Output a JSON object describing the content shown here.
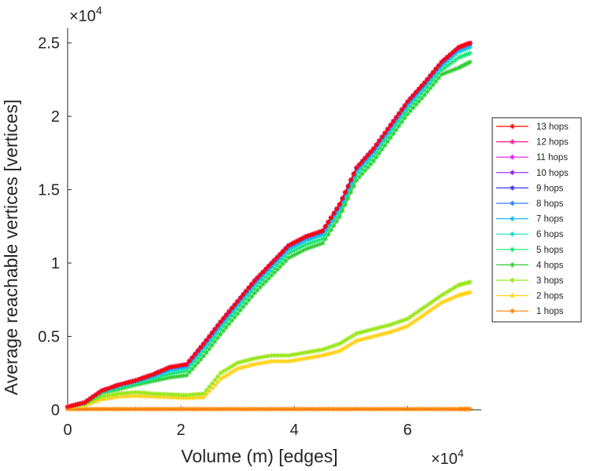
{
  "chart_data": {
    "type": "line",
    "title": "",
    "xlabel": "Volume (m) [edges]",
    "ylabel": "Average reachable vertices [vertices]",
    "x_multiplier": "×10⁴",
    "y_multiplier": "×10⁴",
    "x_multiplier_base": "×10",
    "x_multiplier_exp": "4",
    "y_multiplier_base": "×10",
    "y_multiplier_exp": "4",
    "xlim": [
      0,
      73000
    ],
    "ylim": [
      0,
      26000
    ],
    "xticks": [
      0,
      20000,
      40000,
      60000
    ],
    "xtick_labels": [
      "0",
      "2",
      "4",
      "6"
    ],
    "yticks": [
      0,
      5000,
      10000,
      15000,
      20000,
      25000
    ],
    "ytick_labels": [
      "0",
      "0.5",
      "1",
      "1.5",
      "2",
      "2.5"
    ],
    "grid": false,
    "legend_position": "right",
    "marker": "*",
    "x": [
      0,
      3000,
      6000,
      9000,
      12000,
      15000,
      18000,
      21000,
      24000,
      27000,
      30000,
      33000,
      36000,
      39000,
      42000,
      45000,
      48000,
      51000,
      54000,
      57000,
      60000,
      63000,
      66000,
      69000,
      71000
    ],
    "series": [
      {
        "name": "13 hops",
        "color": "#ff0000",
        "values": [
          200,
          500,
          1300,
          1700,
          2000,
          2400,
          2900,
          3100,
          4500,
          6000,
          7400,
          8800,
          10000,
          11200,
          11800,
          12200,
          14000,
          16500,
          17800,
          19400,
          21000,
          22300,
          23700,
          24700,
          25000
        ]
      },
      {
        "name": "12 hops",
        "color": "#ff1a8c",
        "values": [
          200,
          500,
          1300,
          1700,
          2000,
          2400,
          2900,
          3100,
          4500,
          6000,
          7400,
          8800,
          10000,
          11200,
          11800,
          12200,
          14000,
          16500,
          17800,
          19400,
          21000,
          22300,
          23700,
          24700,
          25000
        ]
      },
      {
        "name": "11 hops",
        "color": "#e61ae6",
        "values": [
          200,
          500,
          1300,
          1700,
          2000,
          2400,
          2900,
          3100,
          4500,
          6000,
          7400,
          8800,
          10000,
          11200,
          11800,
          12200,
          14000,
          16500,
          17800,
          19400,
          21000,
          22300,
          23700,
          24700,
          25000
        ]
      },
      {
        "name": "10 hops",
        "color": "#8c1ae6",
        "values": [
          200,
          500,
          1300,
          1700,
          2000,
          2400,
          2900,
          3100,
          4500,
          6000,
          7400,
          8800,
          10000,
          11200,
          11800,
          12200,
          14000,
          16500,
          17800,
          19400,
          21000,
          22300,
          23700,
          24700,
          25000
        ]
      },
      {
        "name": "9 hops",
        "color": "#3333ee",
        "values": [
          200,
          500,
          1300,
          1700,
          2000,
          2400,
          2900,
          3100,
          4500,
          6000,
          7400,
          8800,
          10000,
          11200,
          11800,
          12200,
          14000,
          16500,
          17800,
          19400,
          21000,
          22300,
          23700,
          24700,
          25000
        ]
      },
      {
        "name": "8 hops",
        "color": "#2a7fff",
        "values": [
          200,
          500,
          1300,
          1700,
          2000,
          2350,
          2850,
          3050,
          4450,
          5950,
          7350,
          8750,
          9950,
          11150,
          11750,
          12150,
          13950,
          16450,
          17750,
          19350,
          20950,
          22250,
          23650,
          24650,
          24950
        ]
      },
      {
        "name": "7 hops",
        "color": "#1ab8f0",
        "values": [
          200,
          500,
          1300,
          1650,
          1950,
          2300,
          2750,
          2950,
          4300,
          5800,
          7200,
          8600,
          9800,
          11000,
          11600,
          12000,
          13800,
          16300,
          17600,
          19200,
          20800,
          22100,
          23500,
          24500,
          24800
        ]
      },
      {
        "name": "6 hops",
        "color": "#1adbc8",
        "values": [
          200,
          500,
          1250,
          1600,
          1900,
          2200,
          2650,
          2850,
          4200,
          5700,
          7100,
          8500,
          9700,
          10900,
          11500,
          11900,
          13700,
          16200,
          17500,
          19100,
          20700,
          22000,
          23400,
          24400,
          24700
        ]
      },
      {
        "name": "5 hops",
        "color": "#1ae673",
        "values": [
          200,
          500,
          1200,
          1500,
          1800,
          2100,
          2450,
          2650,
          3950,
          5450,
          6850,
          8250,
          9450,
          10650,
          11250,
          11650,
          13450,
          15950,
          17250,
          18850,
          20450,
          21750,
          23150,
          24000,
          24300
        ]
      },
      {
        "name": "4 hops",
        "color": "#33cc33",
        "values": [
          200,
          450,
          1150,
          1400,
          1700,
          1950,
          2200,
          2350,
          3650,
          5150,
          6550,
          7950,
          9150,
          10350,
          10950,
          11350,
          13150,
          15650,
          16950,
          18550,
          20150,
          21450,
          22850,
          23300,
          23700
        ]
      },
      {
        "name": "3 hops",
        "color": "#99e61a",
        "values": [
          200,
          400,
          900,
          1100,
          1200,
          1100,
          1050,
          1000,
          1100,
          2500,
          3200,
          3500,
          3700,
          3700,
          3900,
          4100,
          4500,
          5200,
          5500,
          5800,
          6200,
          7000,
          7800,
          8500,
          8700
        ]
      },
      {
        "name": "2 hops",
        "color": "#ffd21a",
        "values": [
          150,
          300,
          700,
          900,
          950,
          900,
          850,
          800,
          850,
          2100,
          2800,
          3100,
          3300,
          3300,
          3500,
          3700,
          4000,
          4700,
          5000,
          5300,
          5700,
          6500,
          7300,
          7800,
          8000
        ]
      },
      {
        "name": "1 hops",
        "color": "#ff8000",
        "values": [
          50,
          50,
          50,
          50,
          50,
          50,
          50,
          50,
          50,
          50,
          50,
          50,
          50,
          50,
          50,
          50,
          50,
          50,
          50,
          50,
          50,
          50,
          50,
          50,
          50
        ]
      }
    ]
  }
}
